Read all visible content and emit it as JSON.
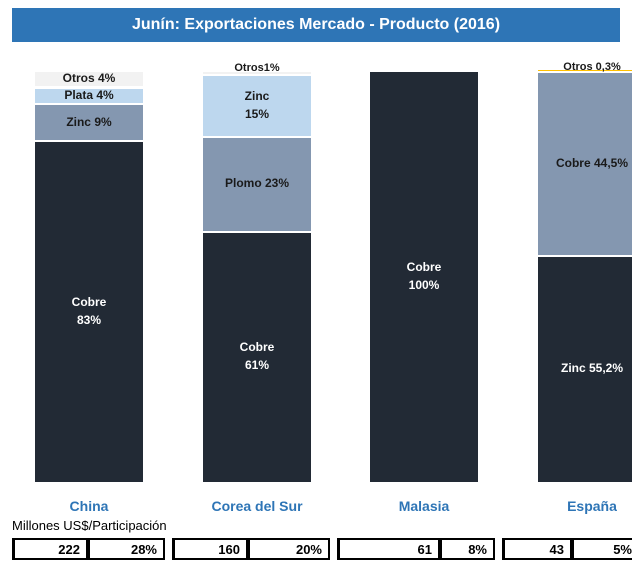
{
  "chart_data": {
    "type": "stacked_bar_100",
    "title": "Junín: Exportaciones Mercado - Producto (2016)",
    "ylim": [
      0,
      100
    ],
    "bars": [
      {
        "category": "China",
        "segments": [
          {
            "value": 83,
            "value_label": "Cobre\n83%",
            "color": "#222a35"
          },
          {
            "value": 9,
            "value_label": "Zinc  9%",
            "color": "#8497b0"
          },
          {
            "value": 4,
            "value_label": "Plata  4%",
            "color": "#bdd7ee"
          },
          {
            "value": 4,
            "value_label": "Otros 4%",
            "color": "#f2f2f2"
          }
        ]
      },
      {
        "category": "Corea del Sur",
        "segments": [
          {
            "value": 61,
            "value_label": "Cobre\n61%",
            "color": "#222a35"
          },
          {
            "value": 23,
            "value_label": "Plomo 23%",
            "color": "#8497b0"
          },
          {
            "value": 15,
            "value_label": "Zinc\n15%",
            "color": "#bdd7ee"
          },
          {
            "value": 1,
            "value_label": "Otros1%",
            "color": "#f2f2f2"
          }
        ]
      },
      {
        "category": "Malasia",
        "segments": [
          {
            "value": 100,
            "value_label": "Cobre\n100%",
            "color": "#222a35"
          }
        ]
      },
      {
        "category": "España",
        "segments": [
          {
            "value": 55.2,
            "value_label": "Zinc 55,2%",
            "color": "#222a35"
          },
          {
            "value": 44.5,
            "value_label": "Cobre 44,5%",
            "color": "#8497b0"
          },
          {
            "value": 0.3,
            "value_label": "Otros 0,3%",
            "color": "#ffc000"
          }
        ]
      }
    ],
    "table": {
      "caption": "Millones US$/Participación",
      "rows": [
        [
          "222",
          "28%"
        ],
        [
          "160",
          "20%"
        ],
        [
          "61",
          "8%"
        ],
        [
          "43",
          "5%"
        ]
      ]
    }
  }
}
